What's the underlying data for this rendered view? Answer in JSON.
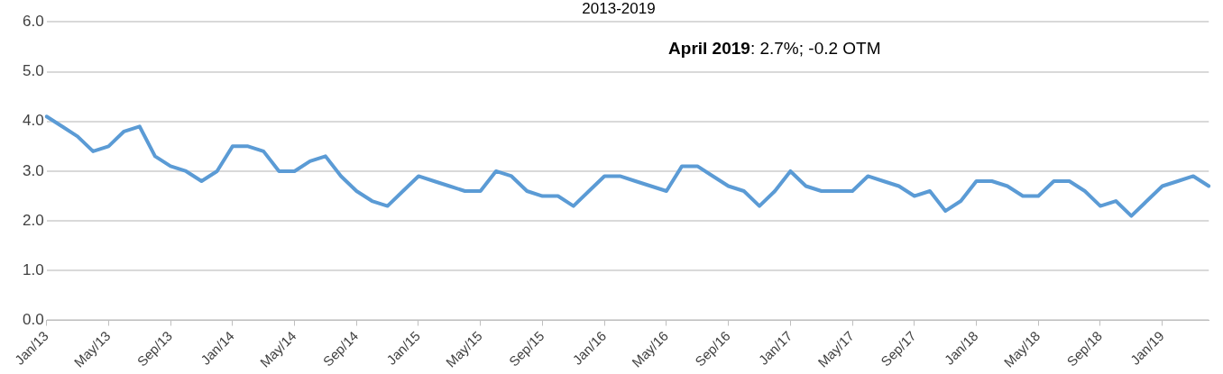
{
  "chart_data": {
    "type": "line",
    "title": "2013-2019",
    "annotations": [
      "April 2019: 2.7%; -0.2 OTM"
    ],
    "categories": [
      "Jan/13",
      null,
      null,
      null,
      "May/13",
      null,
      null,
      null,
      "Sep/13",
      null,
      null,
      null,
      "Jan/14",
      null,
      null,
      null,
      "May/14",
      null,
      null,
      null,
      "Sep/14",
      null,
      null,
      null,
      "Jan/15",
      null,
      null,
      null,
      "May/15",
      null,
      null,
      null,
      "Sep/15",
      null,
      null,
      null,
      "Jan/16",
      null,
      null,
      null,
      "May/16",
      null,
      null,
      null,
      "Sep/16",
      null,
      null,
      null,
      "Jan/17",
      null,
      null,
      null,
      "May/17",
      null,
      null,
      null,
      "Sep/17",
      null,
      null,
      null,
      "Jan/18",
      null,
      null,
      null,
      "May/18",
      null,
      null,
      null,
      "Sep/18",
      null,
      null,
      null,
      "Jan/19",
      null,
      null,
      null
    ],
    "series": [
      {
        "color": "#5b9bd5",
        "values": [
          4.1,
          3.9,
          3.7,
          3.4,
          3.5,
          3.8,
          3.9,
          3.3,
          3.1,
          3.0,
          2.8,
          3.0,
          3.5,
          3.5,
          3.4,
          3.0,
          3.0,
          3.2,
          3.3,
          2.9,
          2.6,
          2.4,
          2.3,
          2.6,
          2.9,
          2.8,
          2.7,
          2.6,
          2.6,
          3.0,
          2.9,
          2.6,
          2.5,
          2.5,
          2.3,
          2.6,
          2.9,
          2.9,
          2.8,
          2.7,
          2.6,
          3.1,
          3.1,
          2.9,
          2.7,
          2.6,
          2.3,
          2.6,
          3.0,
          2.7,
          2.6,
          2.6,
          2.6,
          2.9,
          2.8,
          2.7,
          2.5,
          2.6,
          2.2,
          2.4,
          2.8,
          2.8,
          2.7,
          2.5,
          2.5,
          2.8,
          2.8,
          2.6,
          2.3,
          2.4,
          2.1,
          2.4,
          2.7,
          2.8,
          2.9,
          2.7
        ]
      }
    ],
    "ylim": [
      0,
      6
    ],
    "yticks": [
      {
        "value": 0,
        "label": "0.0"
      },
      {
        "value": 1,
        "label": "1.0"
      },
      {
        "value": 2,
        "label": "2.0"
      },
      {
        "value": 3,
        "label": "3.0"
      },
      {
        "value": 4,
        "label": "4.0"
      },
      {
        "value": 5,
        "label": "5.0"
      },
      {
        "value": 6,
        "label": "6.0"
      }
    ],
    "grid": "y",
    "legend": false,
    "marker": "none",
    "line_style": "solid"
  }
}
